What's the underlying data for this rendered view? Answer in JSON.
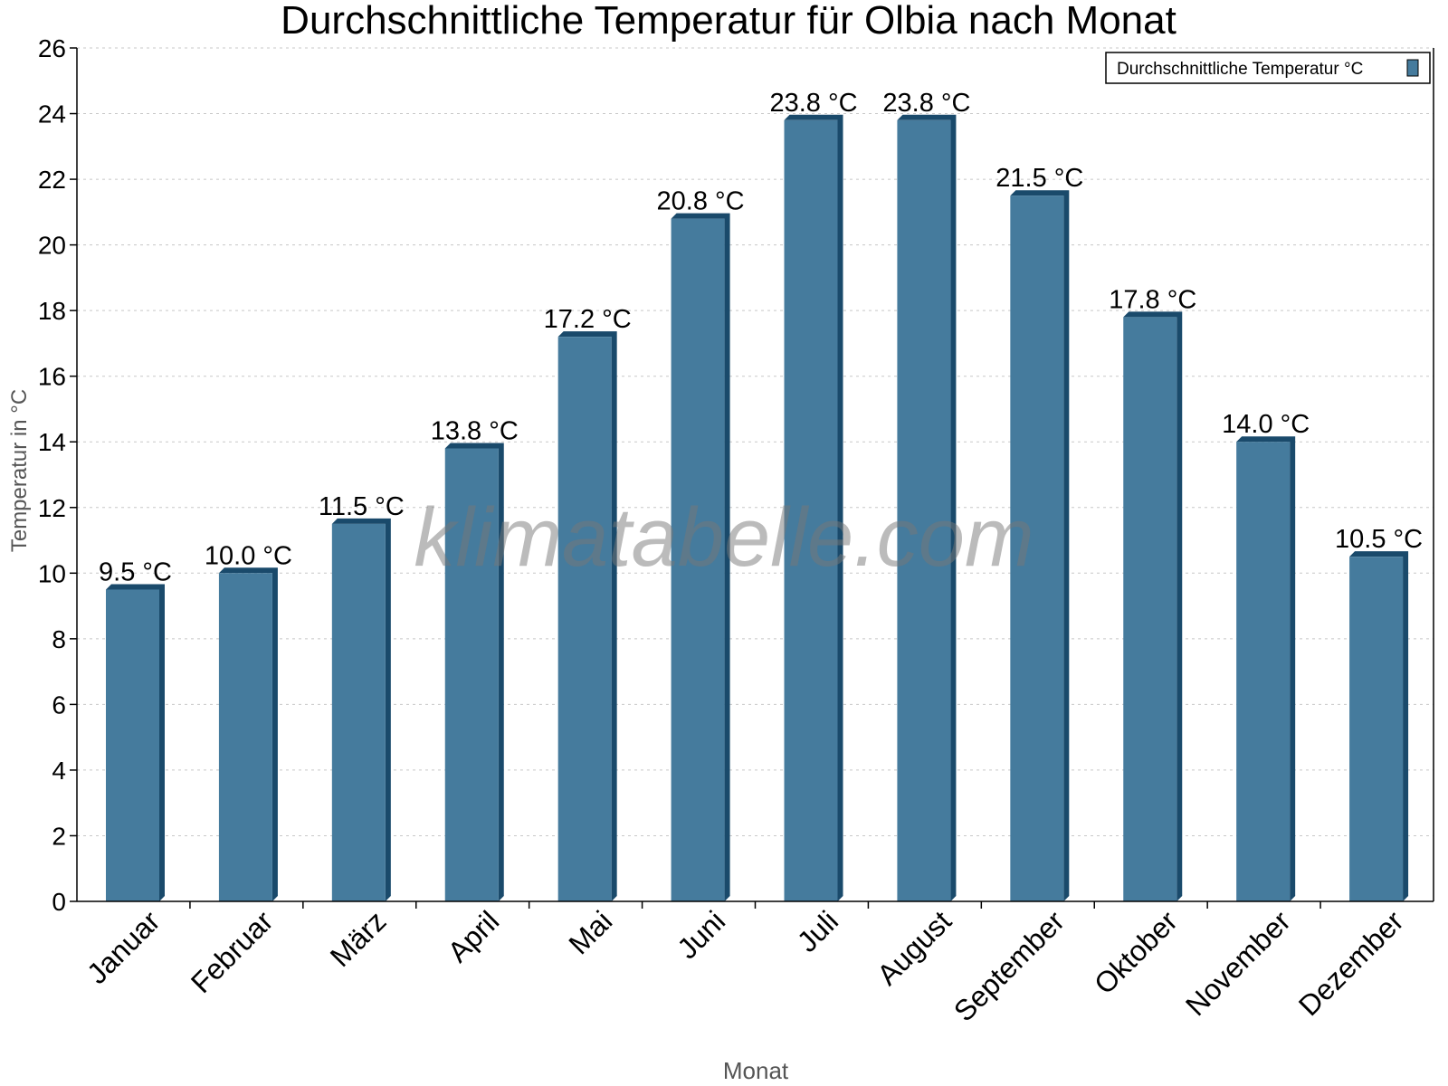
{
  "chart_data": {
    "type": "bar",
    "title": "Durchschnittliche Temperatur für Olbia nach Monat",
    "xlabel": "Monat",
    "ylabel": "Temperatur in °C",
    "categories": [
      "Januar",
      "Februar",
      "März",
      "April",
      "Mai",
      "Juni",
      "Juli",
      "August",
      "September",
      "Oktober",
      "November",
      "Dezember"
    ],
    "series": [
      {
        "name": "Durchschnittliche Temperatur °C",
        "values": [
          9.5,
          10.0,
          11.5,
          13.8,
          17.2,
          20.8,
          23.8,
          23.8,
          21.5,
          17.8,
          14.0,
          10.5
        ],
        "labels": [
          "9.5 °C",
          "10.0 °C",
          "11.5 °C",
          "13.8 °C",
          "17.2 °C",
          "20.8 °C",
          "23.8 °C",
          "23.8 °C",
          "21.5 °C",
          "17.8 °C",
          "14.0 °C",
          "10.5 °C"
        ]
      }
    ],
    "ylim": [
      0,
      26
    ],
    "yticks": [
      "0",
      "2",
      "4",
      "6",
      "8",
      "10",
      "12",
      "14",
      "16",
      "18",
      "20",
      "22",
      "24",
      "26"
    ],
    "grid": true,
    "legend_position": "top-right",
    "colors": {
      "bar": "#457b9d",
      "bar_shade": "#1a4a6b",
      "grid": "#c8c8c8"
    },
    "watermark": "klimatabelle.com"
  }
}
